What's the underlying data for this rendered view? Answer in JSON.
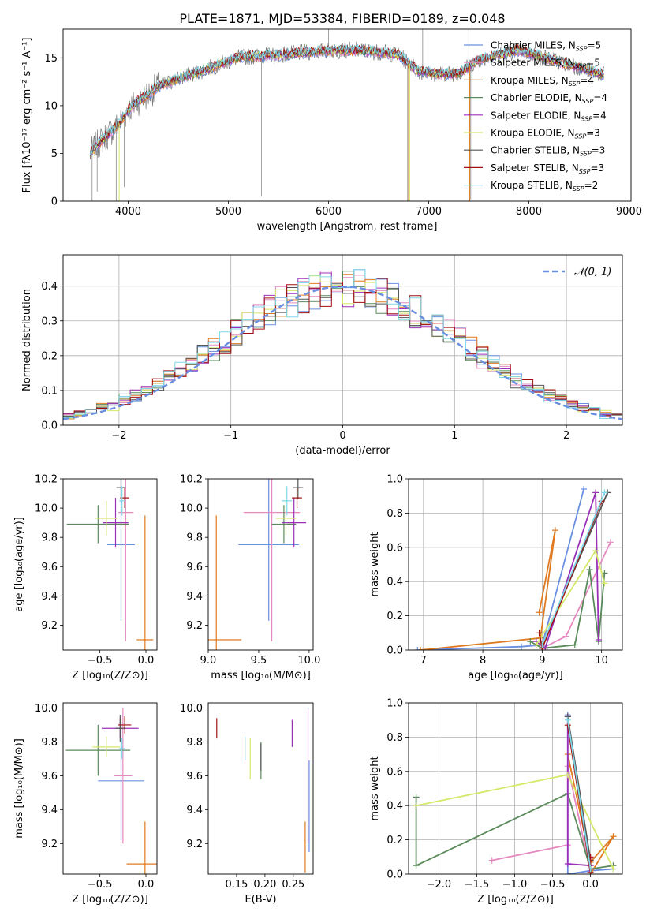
{
  "title": "PLATE=1871, MJD=53384, FIBERID=0189, z=0.048",
  "colors": {
    "Chabrier MILES": "#6a8fe0",
    "Salpeter MILES": "#e58ac0",
    "Kroupa MILES": "#e07a20",
    "Chabrier ELODIE": "#5a8a5a",
    "Salpeter ELODIE": "#9b30b8",
    "Kroupa ELODIE": "#d6e86a",
    "Chabrier STELIB": "#555555",
    "Salpeter STELIB": "#a01010",
    "Kroupa STELIB": "#7fd8e8",
    "data": "#7a7a7a",
    "normal": "#6a8fe0"
  },
  "chart_data": [
    {
      "type": "line",
      "ylabel": "Flux [fλ10⁻¹⁷ erg cm⁻² s⁻¹ A⁻¹]",
      "xlabel": "wavelength [Angstrom, rest frame]",
      "xlim": [
        3350,
        9020
      ],
      "ylim": [
        0,
        18
      ],
      "xticks": [
        4000,
        5000,
        6000,
        7000,
        8000,
        9000
      ],
      "yticks": [
        0,
        5,
        10,
        15
      ],
      "continuum_x": [
        3620,
        3700,
        3800,
        3900,
        4000,
        4100,
        4200,
        4300,
        4500,
        4700,
        4900,
        5100,
        5300,
        5500,
        5800,
        6100,
        6300,
        6500,
        6700,
        6900,
        7100,
        7300,
        7500,
        7700,
        7900,
        8100,
        8300,
        8500,
        8750
      ],
      "continuum_y": [
        5.0,
        6.0,
        7.0,
        8.0,
        9.5,
        10.5,
        11.2,
        12.0,
        12.8,
        13.5,
        14.3,
        15.0,
        15.2,
        15.3,
        15.6,
        15.8,
        15.8,
        15.6,
        15.3,
        13.6,
        13.3,
        13.4,
        14.8,
        15.3,
        15.8,
        15.2,
        14.6,
        14.0,
        13.2
      ],
      "legend": [
        {
          "label": "Chabrier MILES, N",
          "sub": "SSP",
          "tail": "=5",
          "color": "#6a8fe0"
        },
        {
          "label": "Salpeter MILES, N",
          "sub": "SSP",
          "tail": "=5",
          "color": "#e58ac0"
        },
        {
          "label": "Kroupa MILES, N",
          "sub": "SSP",
          "tail": "=4",
          "color": "#e07a20"
        },
        {
          "label": "Chabrier ELODIE, N",
          "sub": "SSP",
          "tail": "=4",
          "color": "#5a8a5a"
        },
        {
          "label": "Salpeter ELODIE, N",
          "sub": "SSP",
          "tail": "=4",
          "color": "#9b30b8"
        },
        {
          "label": "Kroupa ELODIE, N",
          "sub": "SSP",
          "tail": "=3",
          "color": "#d6e86a"
        },
        {
          "label": "Chabrier STELIB, N",
          "sub": "SSP",
          "tail": "=3",
          "color": "#555555"
        },
        {
          "label": "Salpeter STELIB, N",
          "sub": "SSP",
          "tail": "=3",
          "color": "#a01010"
        },
        {
          "label": "Kroupa STELIB, N",
          "sub": "SSP",
          "tail": "=2",
          "color": "#7fd8e8"
        }
      ]
    },
    {
      "type": "line",
      "ylabel": "Normed distribution",
      "xlabel": "(data-model)/error",
      "xlim": [
        -2.5,
        2.5
      ],
      "ylim": [
        0,
        0.49
      ],
      "xticks": [
        -2,
        -1,
        0,
        1,
        2
      ],
      "yticks": [
        0.0,
        0.1,
        0.2,
        0.3,
        0.4
      ],
      "legend": "𝒩(0, 1)",
      "bin_width": 0.1
    },
    {
      "type": "scatter",
      "ylabel": "age  [log₁₀(age/yr)]",
      "xlabel": "Z [log₁₀(Z/Z⊙)]",
      "xlim": [
        -0.9,
        0.12
      ],
      "ylim": [
        9.03,
        10.2
      ],
      "xticks": [
        -0.5,
        0.0
      ],
      "yticks": [
        9.2,
        9.4,
        9.6,
        9.8,
        10.0,
        10.2
      ],
      "points": [
        {
          "x": -0.27,
          "y": 9.75,
          "xerr": 0.15,
          "yerr": 0.52,
          "c": "Chabrier MILES"
        },
        {
          "x": -0.22,
          "y": 9.97,
          "xerr": 0.08,
          "yerr": 0.88,
          "c": "Salpeter MILES"
        },
        {
          "x": -0.01,
          "y": 9.1,
          "xerr": 0.09,
          "yerr": 0.85,
          "c": "Kroupa MILES"
        },
        {
          "x": -0.52,
          "y": 9.89,
          "xerr": 0.34,
          "yerr": 0.13,
          "c": "Chabrier ELODIE"
        },
        {
          "x": -0.33,
          "y": 9.9,
          "xerr": 0.14,
          "yerr": 0.17,
          "c": "Salpeter ELODIE"
        },
        {
          "x": -0.43,
          "y": 9.93,
          "xerr": 0.12,
          "yerr": 0.12,
          "c": "Kroupa ELODIE"
        },
        {
          "x": -0.27,
          "y": 10.14,
          "xerr": 0.05,
          "yerr": 0.08,
          "c": "Chabrier STELIB"
        },
        {
          "x": -0.23,
          "y": 10.07,
          "xerr": 0.05,
          "yerr": 0.07,
          "c": "Salpeter STELIB"
        },
        {
          "x": -0.26,
          "y": 10.05,
          "xerr": 0.03,
          "yerr": 0.1,
          "c": "Kroupa STELIB"
        }
      ]
    },
    {
      "type": "scatter",
      "ylabel": "",
      "xlabel": "mass [log₁₀(M/M⊙)]",
      "xlim": [
        9.0,
        10.04
      ],
      "ylim": [
        9.03,
        10.2
      ],
      "xticks": [
        9.0,
        9.5,
        10.0
      ],
      "yticks": [
        9.2,
        9.4,
        9.6,
        9.8,
        10.0,
        10.2
      ],
      "points": [
        {
          "x": 9.6,
          "y": 9.75,
          "xerr": 0.3,
          "yerr": 0.52,
          "c": "Chabrier MILES"
        },
        {
          "x": 9.63,
          "y": 9.97,
          "xerr": 0.28,
          "yerr": 0.88,
          "c": "Salpeter MILES"
        },
        {
          "x": 9.08,
          "y": 9.1,
          "xerr": 0.25,
          "yerr": 0.85,
          "c": "Kroupa MILES"
        },
        {
          "x": 9.75,
          "y": 9.89,
          "xerr": 0.12,
          "yerr": 0.13,
          "c": "Chabrier ELODIE"
        },
        {
          "x": 9.85,
          "y": 9.9,
          "xerr": 0.12,
          "yerr": 0.17,
          "c": "Salpeter ELODIE"
        },
        {
          "x": 9.77,
          "y": 9.93,
          "xerr": 0.1,
          "yerr": 0.12,
          "c": "Kroupa ELODIE"
        },
        {
          "x": 9.89,
          "y": 10.14,
          "xerr": 0.05,
          "yerr": 0.08,
          "c": "Chabrier STELIB"
        },
        {
          "x": 9.88,
          "y": 10.07,
          "xerr": 0.05,
          "yerr": 0.07,
          "c": "Salpeter STELIB"
        },
        {
          "x": 9.78,
          "y": 10.05,
          "xerr": 0.05,
          "yerr": 0.1,
          "c": "Kroupa STELIB"
        }
      ]
    },
    {
      "type": "line",
      "ylabel": "mass weight",
      "xlabel": "age  [log₁₀(age/yr)]",
      "xlim": [
        6.75,
        10.35
      ],
      "ylim": [
        0,
        1.0
      ],
      "xticks": [
        7,
        8,
        9,
        10
      ],
      "yticks": [
        0.0,
        0.2,
        0.4,
        0.6,
        0.8,
        1.0
      ],
      "series": [
        {
          "c": "Chabrier MILES",
          "x": [
            6.9,
            8.65,
            9.0,
            9.7
          ],
          "y": [
            0.0,
            0.02,
            0.03,
            0.94
          ]
        },
        {
          "c": "Salpeter MILES",
          "x": [
            9.0,
            9.4,
            10.15
          ],
          "y": [
            0.01,
            0.08,
            0.63
          ]
        },
        {
          "c": "Kroupa MILES",
          "x": [
            6.95,
            8.97,
            9.22,
            8.95
          ],
          "y": [
            0.0,
            0.07,
            0.7,
            0.22
          ]
        },
        {
          "c": "Chabrier ELODIE",
          "x": [
            8.8,
            9.0,
            9.55,
            9.8,
            9.95,
            10.05
          ],
          "y": [
            0.05,
            0.01,
            0.03,
            0.47,
            0.05,
            0.45
          ]
        },
        {
          "c": "Salpeter ELODIE",
          "x": [
            8.9,
            9.05,
            9.9,
            9.95
          ],
          "y": [
            0.05,
            0.01,
            0.92,
            0.06
          ]
        },
        {
          "c": "Kroupa ELODIE",
          "x": [
            8.9,
            9.9,
            10.05
          ],
          "y": [
            0.03,
            0.58,
            0.39
          ]
        },
        {
          "c": "Chabrier STELIB",
          "x": [
            9.0,
            10.1
          ],
          "y": [
            0.03,
            0.92
          ]
        },
        {
          "c": "Salpeter STELIB",
          "x": [
            8.95,
            9.0,
            10.0
          ],
          "y": [
            0.1,
            0.01,
            0.87
          ]
        },
        {
          "c": "Kroupa STELIB",
          "x": [
            9.0,
            10.05
          ],
          "y": [
            0.03,
            0.92
          ]
        }
      ]
    },
    {
      "type": "scatter",
      "ylabel": "mass [log₁₀(M/M⊙)]",
      "xlabel": "Z [log₁₀(Z/Z⊙)]",
      "xlim": [
        -0.9,
        0.12
      ],
      "ylim": [
        9.02,
        10.03
      ],
      "xticks": [
        -0.5,
        0.0
      ],
      "yticks": [
        9.2,
        9.4,
        9.6,
        9.8,
        10.0
      ],
      "points": [
        {
          "x": -0.27,
          "y": 9.57,
          "xerr": 0.25,
          "yerr": 0.35,
          "c": "Chabrier MILES"
        },
        {
          "x": -0.25,
          "y": 9.6,
          "xerr": 0.1,
          "yerr": 0.4,
          "c": "Salpeter MILES"
        },
        {
          "x": -0.01,
          "y": 9.08,
          "xerr": 0.2,
          "yerr": 0.25,
          "c": "Kroupa MILES"
        },
        {
          "x": -0.52,
          "y": 9.75,
          "xerr": 0.35,
          "yerr": 0.15,
          "c": "Chabrier ELODIE"
        },
        {
          "x": -0.28,
          "y": 9.88,
          "xerr": 0.2,
          "yerr": 0.06,
          "c": "Salpeter ELODIE"
        },
        {
          "x": -0.43,
          "y": 9.77,
          "xerr": 0.15,
          "yerr": 0.06,
          "c": "Kroupa ELODIE"
        },
        {
          "x": -0.28,
          "y": 9.88,
          "xerr": 0.05,
          "yerr": 0.08,
          "c": "Chabrier STELIB"
        },
        {
          "x": -0.23,
          "y": 9.9,
          "xerr": 0.07,
          "yerr": 0.05,
          "c": "Salpeter STELIB"
        },
        {
          "x": -0.26,
          "y": 9.76,
          "xerr": 0.03,
          "yerr": 0.06,
          "c": "Kroupa STELIB"
        }
      ]
    },
    {
      "type": "scatter",
      "ylabel": "",
      "xlabel": "E(B-V)",
      "xlim": [
        0.1,
        0.285
      ],
      "ylim": [
        9.02,
        10.03
      ],
      "xticks": [
        0.15,
        0.2,
        0.25
      ],
      "xtick_labels": [
        "0.15",
        "0.20",
        "0.25"
      ],
      "yticks": [
        9.2,
        9.4,
        9.6,
        9.8,
        10.0
      ],
      "points": [
        {
          "x": 0.278,
          "y": 9.42,
          "yerr": 0.27,
          "c": "Chabrier MILES"
        },
        {
          "x": 0.276,
          "y": 9.6,
          "yerr": 0.4,
          "c": "Salpeter MILES"
        },
        {
          "x": 0.271,
          "y": 9.18,
          "yerr": 0.15,
          "c": "Kroupa MILES"
        },
        {
          "x": 0.193,
          "y": 9.69,
          "yerr": 0.11,
          "c": "Chabrier ELODIE"
        },
        {
          "x": 0.248,
          "y": 9.85,
          "yerr": 0.08,
          "c": "Salpeter ELODIE"
        },
        {
          "x": 0.174,
          "y": 9.7,
          "yerr": 0.12,
          "c": "Kroupa ELODIE"
        },
        {
          "x": 0.193,
          "y": 9.71,
          "yerr": 0.08,
          "c": "Chabrier STELIB"
        },
        {
          "x": 0.115,
          "y": 9.88,
          "yerr": 0.06,
          "c": "Salpeter STELIB"
        },
        {
          "x": 0.165,
          "y": 9.76,
          "yerr": 0.07,
          "c": "Kroupa STELIB"
        }
      ]
    },
    {
      "type": "line",
      "ylabel": "mass weight",
      "xlabel": "Z [log₁₀(Z/Z⊙)]",
      "xlim": [
        -2.4,
        0.42
      ],
      "ylim": [
        0,
        1.0
      ],
      "xticks": [
        -2.0,
        -1.5,
        -1.0,
        -0.5,
        0.0
      ],
      "yticks": [
        0.0,
        0.2,
        0.4,
        0.6,
        0.8,
        1.0
      ],
      "series": [
        {
          "c": "Chabrier MILES",
          "x": [
            -0.3,
            -0.3,
            0.0,
            0.3
          ],
          "y": [
            0.93,
            0.0,
            0.02,
            0.03
          ]
        },
        {
          "c": "Salpeter MILES",
          "x": [
            -1.3,
            -0.3,
            -0.3,
            0.0
          ],
          "y": [
            0.08,
            0.17,
            0.63,
            0.01
          ]
        },
        {
          "c": "Kroupa MILES",
          "x": [
            -0.3,
            0.0,
            0.3,
            0.0
          ],
          "y": [
            0.7,
            0.07,
            0.22,
            0.0
          ]
        },
        {
          "c": "Chabrier ELODIE",
          "x": [
            -2.3,
            -2.3,
            -0.3,
            0.0,
            0.3
          ],
          "y": [
            0.45,
            0.05,
            0.47,
            0.03,
            0.05
          ]
        },
        {
          "c": "Salpeter ELODIE",
          "x": [
            -0.3,
            -0.3,
            0.0
          ],
          "y": [
            0.92,
            0.06,
            0.05
          ]
        },
        {
          "c": "Kroupa ELODIE",
          "x": [
            -2.3,
            -0.3,
            0.3
          ],
          "y": [
            0.4,
            0.58,
            0.03
          ]
        },
        {
          "c": "Chabrier STELIB",
          "x": [
            -0.3,
            0.0
          ],
          "y": [
            0.92,
            0.08
          ]
        },
        {
          "c": "Salpeter STELIB",
          "x": [
            -0.3,
            0.0,
            0.0
          ],
          "y": [
            0.87,
            0.01,
            0.1
          ]
        },
        {
          "c": "Kroupa STELIB",
          "x": [
            -0.3,
            0.0
          ],
          "y": [
            0.9,
            0.03
          ]
        }
      ]
    }
  ]
}
